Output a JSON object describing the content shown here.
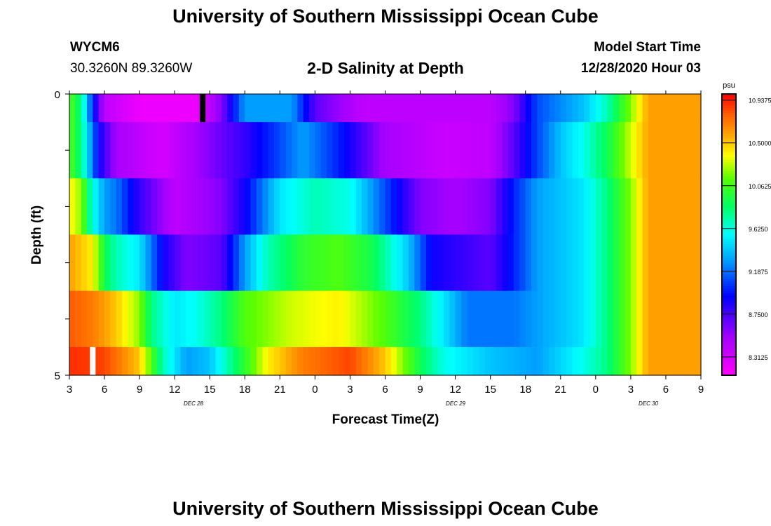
{
  "page": {
    "title": "University of Southern Mississippi Ocean Cube",
    "footer_title": "University of Southern Mississippi Ocean Cube",
    "station_id": "WYCM6",
    "coordinates": "30.3260N 89.3260W",
    "plot_title": "2-D Salinity at Depth",
    "model_start_label": "Model Start Time",
    "model_start_value": "12/28/2020 Hour 03"
  },
  "chart_data": {
    "type": "heatmap",
    "title": "2-D Salinity at Depth",
    "xlabel": "Forecast Time(Z)",
    "ylabel": "Depth (ft)",
    "x_tick_labels": [
      "3",
      "6",
      "9",
      "12",
      "15",
      "18",
      "21",
      "0",
      "3",
      "6",
      "9",
      "12",
      "15",
      "18",
      "21",
      "0",
      "3",
      "6",
      "9"
    ],
    "x_date_labels": [
      "DEC 28",
      "DEC 29",
      "DEC 30"
    ],
    "y_tick_labels": [
      "0",
      "5"
    ],
    "y_range": [
      0,
      5
    ],
    "forecast_hours": [
      0,
      54
    ],
    "colorbar": {
      "unit": "psu",
      "range": [
        8.125,
        11.0
      ],
      "tick_labels": [
        "10.9375",
        "10.5000",
        "10.0625",
        "9.6250",
        "9.1875",
        "8.7500",
        "8.3125"
      ],
      "tick_values": [
        10.9375,
        10.5,
        10.0625,
        9.625,
        9.1875,
        8.75,
        8.3125
      ]
    },
    "layers": [
      {
        "depth_range": [
          0,
          0.5
        ],
        "knots": [
          [
            0,
            10.1
          ],
          [
            1,
            9.8
          ],
          [
            2,
            9.0
          ],
          [
            3,
            8.4
          ],
          [
            6,
            8.2
          ],
          [
            11,
            8.2
          ],
          [
            13,
            8.6
          ],
          [
            15,
            9.3
          ],
          [
            19,
            9.3
          ],
          [
            21,
            8.7
          ],
          [
            25,
            8.4
          ],
          [
            36,
            8.4
          ],
          [
            38,
            8.6
          ],
          [
            40,
            9.1
          ],
          [
            44,
            9.4
          ],
          [
            46,
            9.7
          ],
          [
            48,
            10.2
          ],
          [
            49.5,
            10.6
          ],
          [
            54,
            10.6
          ]
        ]
      },
      {
        "depth_range": [
          0.5,
          1.5
        ],
        "knots": [
          [
            0,
            10.1
          ],
          [
            1,
            9.8
          ],
          [
            2.5,
            8.9
          ],
          [
            4,
            8.5
          ],
          [
            8,
            8.3
          ],
          [
            12,
            8.6
          ],
          [
            15,
            8.8
          ],
          [
            17,
            9.0
          ],
          [
            20,
            9.3
          ],
          [
            23,
            9.0
          ],
          [
            27,
            8.5
          ],
          [
            32,
            8.35
          ],
          [
            36,
            8.4
          ],
          [
            38,
            8.7
          ],
          [
            39.5,
            9.0
          ],
          [
            42,
            9.4
          ],
          [
            44,
            9.6
          ],
          [
            46,
            9.9
          ],
          [
            48,
            10.3
          ],
          [
            49.5,
            10.6
          ],
          [
            54,
            10.6
          ]
        ]
      },
      {
        "depth_range": [
          1.5,
          2.5
        ],
        "knots": [
          [
            0,
            10.4
          ],
          [
            1,
            10.2
          ],
          [
            2,
            9.6
          ],
          [
            3,
            9.3
          ],
          [
            4,
            9.2
          ],
          [
            6,
            8.8
          ],
          [
            9,
            8.4
          ],
          [
            13,
            8.6
          ],
          [
            15,
            8.9
          ],
          [
            18,
            9.5
          ],
          [
            21,
            9.7
          ],
          [
            24,
            9.6
          ],
          [
            27,
            9.1
          ],
          [
            30,
            8.6
          ],
          [
            33,
            8.5
          ],
          [
            36,
            8.6
          ],
          [
            38,
            9.0
          ],
          [
            40,
            9.3
          ],
          [
            44,
            9.5
          ],
          [
            46,
            9.8
          ],
          [
            48,
            10.2
          ],
          [
            49.5,
            10.6
          ],
          [
            54,
            10.6
          ]
        ]
      },
      {
        "depth_range": [
          2.5,
          3.5
        ],
        "knots": [
          [
            0,
            10.6
          ],
          [
            2,
            10.4
          ],
          [
            3,
            9.9
          ],
          [
            4,
            9.7
          ],
          [
            6,
            9.5
          ],
          [
            8,
            8.9
          ],
          [
            10,
            8.6
          ],
          [
            13,
            8.7
          ],
          [
            15,
            9.3
          ],
          [
            17,
            9.7
          ],
          [
            20,
            10.0
          ],
          [
            23,
            10.1
          ],
          [
            26,
            9.9
          ],
          [
            29,
            9.4
          ],
          [
            31,
            8.9
          ],
          [
            36,
            8.7
          ],
          [
            38,
            9.0
          ],
          [
            40,
            9.3
          ],
          [
            44,
            9.5
          ],
          [
            46,
            9.8
          ],
          [
            48,
            10.2
          ],
          [
            49.5,
            10.6
          ],
          [
            54,
            10.6
          ]
        ]
      },
      {
        "depth_range": [
          3.5,
          4.5
        ],
        "knots": [
          [
            0,
            10.8
          ],
          [
            2,
            10.7
          ],
          [
            4,
            10.5
          ],
          [
            6,
            10.2
          ],
          [
            7,
            9.8
          ],
          [
            9,
            9.5
          ],
          [
            11,
            9.6
          ],
          [
            13,
            9.8
          ],
          [
            15,
            10.1
          ],
          [
            19,
            10.3
          ],
          [
            23,
            10.4
          ],
          [
            27,
            10.1
          ],
          [
            30,
            9.8
          ],
          [
            32,
            9.5
          ],
          [
            34,
            9.2
          ],
          [
            38,
            9.2
          ],
          [
            40,
            9.3
          ],
          [
            44,
            9.5
          ],
          [
            46,
            9.8
          ],
          [
            48,
            10.2
          ],
          [
            49.5,
            10.6
          ],
          [
            54,
            10.6
          ]
        ]
      },
      {
        "depth_range": [
          4.5,
          5
        ],
        "knots": [
          [
            0,
            10.9
          ],
          [
            3,
            10.85
          ],
          [
            6,
            10.5
          ],
          [
            8,
            9.7
          ],
          [
            10,
            9.3
          ],
          [
            12,
            9.4
          ],
          [
            14,
            9.8
          ],
          [
            17,
            10.4
          ],
          [
            20,
            10.7
          ],
          [
            24,
            10.85
          ],
          [
            27,
            10.5
          ],
          [
            30,
            9.9
          ],
          [
            32,
            9.6
          ],
          [
            36,
            9.4
          ],
          [
            40,
            9.3
          ],
          [
            44,
            9.6
          ],
          [
            46,
            9.8
          ],
          [
            48,
            10.2
          ],
          [
            49.5,
            10.6
          ],
          [
            54,
            10.6
          ]
        ]
      }
    ],
    "markers": [
      {
        "color": "#000000",
        "hour": 11.4,
        "depth_range": [
          0,
          0.5
        ]
      },
      {
        "color": "#ffffff",
        "hour": 2.0,
        "depth_range": [
          4.5,
          5
        ]
      }
    ]
  }
}
